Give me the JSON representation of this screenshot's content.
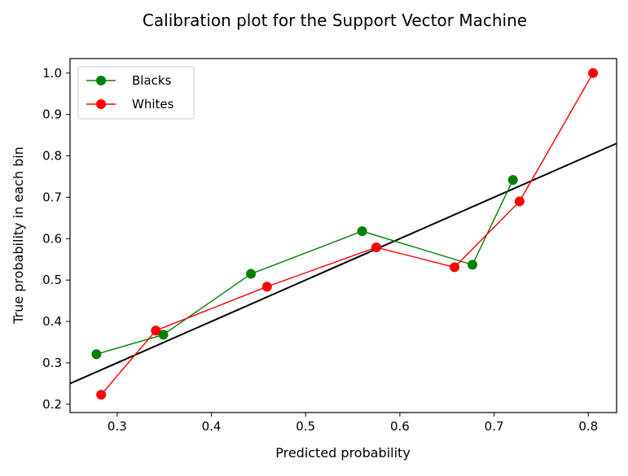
{
  "chart_data": {
    "type": "line",
    "title": "Calibration plot for the Support Vector Machine",
    "xlabel": "Predicted probability",
    "ylabel": "True probability in each bin",
    "xlim": [
      0.25,
      0.83
    ],
    "ylim": [
      0.18,
      1.035
    ],
    "xticks": [
      0.3,
      0.4,
      0.5,
      0.6,
      0.7,
      0.8
    ],
    "yticks": [
      0.2,
      0.3,
      0.4,
      0.5,
      0.6,
      0.7,
      0.8,
      0.9,
      1.0
    ],
    "grid": false,
    "legend_position": "top-left",
    "reference_line": {
      "x": [
        0.0,
        1.0
      ],
      "y": [
        0.0,
        1.0
      ],
      "color": "#000000"
    },
    "series": [
      {
        "name": "Blacks",
        "color": "#008000",
        "x": [
          0.278,
          0.349,
          0.442,
          0.56,
          0.677,
          0.72
        ],
        "y": [
          0.321,
          0.368,
          0.515,
          0.618,
          0.537,
          0.742
        ]
      },
      {
        "name": "Whites",
        "color": "#ff0000",
        "x": [
          0.283,
          0.341,
          0.459,
          0.575,
          0.658,
          0.727,
          0.805
        ],
        "y": [
          0.223,
          0.378,
          0.484,
          0.579,
          0.531,
          0.69,
          1.0
        ]
      }
    ]
  }
}
